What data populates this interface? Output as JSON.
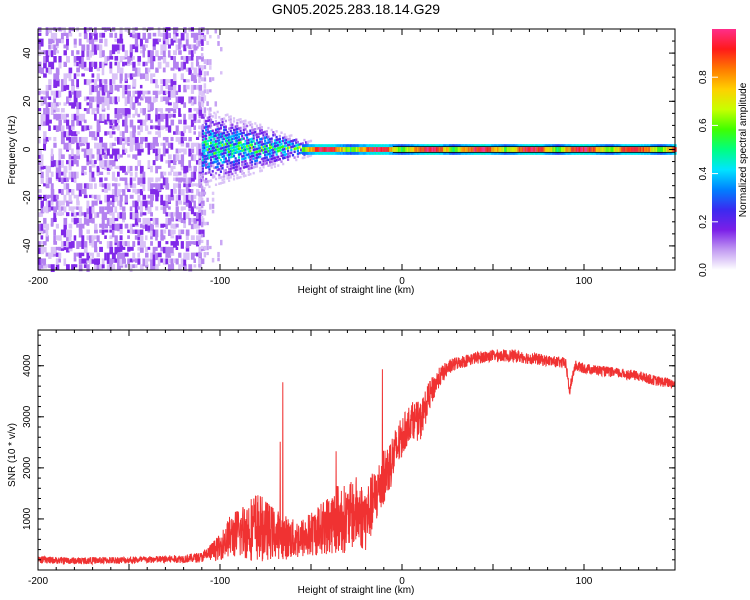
{
  "title": "GN05.2025.283.18.14.G29",
  "chart_data": [
    {
      "type": "heatmap",
      "xlabel": "Height of straight line (km)",
      "ylabel": "Frequency (Hz)",
      "xlim": [
        -200,
        150
      ],
      "ylim": [
        -50,
        50
      ],
      "xticks": [
        -200,
        -100,
        0,
        100
      ],
      "yticks": [
        -40,
        -20,
        0,
        20,
        40
      ],
      "colorbar": {
        "label": "Normalized spectral amplitude",
        "range": [
          0,
          1
        ],
        "ticks": [
          0.0,
          0.2,
          0.4,
          0.6,
          0.8
        ],
        "colormap": [
          "#ffffff",
          "#c29bf2",
          "#7b1fe8",
          "#3b2af0",
          "#0080ff",
          "#00e5ff",
          "#00ff80",
          "#40ff00",
          "#c8ff00",
          "#ffd000",
          "#ff7a00",
          "#ff1a1a",
          "#ff2e8a"
        ]
      },
      "features": [
        {
          "name": "noise",
          "x_range": [
            -200,
            -110
          ],
          "freq_range": [
            -50,
            50
          ],
          "amplitude": 0.15
        },
        {
          "name": "fading-noise",
          "x_range": [
            -112,
            -97
          ],
          "freq_range": [
            -50,
            50
          ],
          "amplitude": 0.06
        },
        {
          "name": "turbulent-onset",
          "x_range": [
            -110,
            -50
          ],
          "freq_range": [
            -10,
            14
          ],
          "amplitude": 0.35
        },
        {
          "name": "signal-line",
          "x_range": [
            -55,
            150
          ],
          "freq": 0,
          "amplitude": 0.9
        }
      ]
    },
    {
      "type": "line",
      "xlabel": "Height of straight line (km)",
      "ylabel": "SNR (10 * v/v)",
      "xlim": [
        -200,
        150
      ],
      "ylim": [
        0,
        4700
      ],
      "xticks": [
        -200,
        -100,
        0,
        100
      ],
      "yticks": [
        1000,
        2000,
        3000,
        4000
      ],
      "color": "#f03232",
      "series": [
        {
          "name": "SNR",
          "x": [
            -200,
            -180,
            -160,
            -140,
            -120,
            -110,
            -100,
            -95,
            -90,
            -85,
            -80,
            -75,
            -70,
            -65,
            -60,
            -55,
            -50,
            -45,
            -40,
            -35,
            -30,
            -25,
            -20,
            -15,
            -10,
            -5,
            0,
            5,
            10,
            15,
            20,
            25,
            30,
            40,
            50,
            60,
            70,
            80,
            90,
            92,
            95,
            100,
            110,
            120,
            130,
            140,
            150
          ],
          "y": [
            200,
            180,
            190,
            200,
            220,
            250,
            450,
            650,
            720,
            800,
            850,
            780,
            720,
            650,
            600,
            620,
            700,
            800,
            900,
            1000,
            1000,
            1150,
            1000,
            1400,
            1800,
            2200,
            2600,
            2950,
            2900,
            3400,
            3750,
            3950,
            4050,
            4150,
            4200,
            4200,
            4150,
            4100,
            4050,
            3500,
            4000,
            3950,
            3900,
            3850,
            3800,
            3700,
            3650
          ],
          "noise_amplitude": [
            70,
            70,
            70,
            70,
            80,
            100,
            250,
            400,
            500,
            600,
            700,
            600,
            500,
            450,
            400,
            400,
            450,
            500,
            600,
            700,
            650,
            700,
            650,
            600,
            550,
            500,
            400,
            350,
            400,
            300,
            200,
            150,
            130,
            120,
            120,
            120,
            120,
            110,
            110,
            110,
            110,
            100,
            100,
            100,
            100,
            100,
            100
          ]
        }
      ]
    }
  ]
}
